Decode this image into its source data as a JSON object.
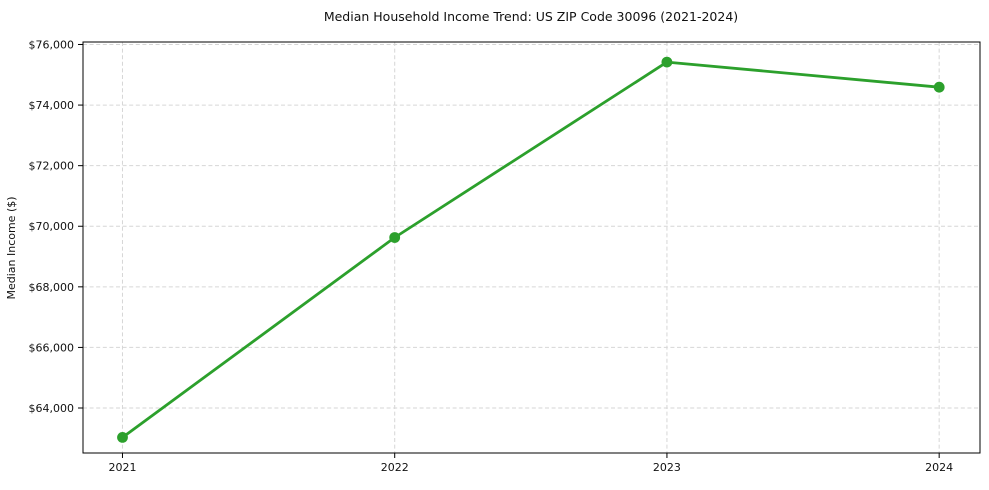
{
  "chart_data": {
    "type": "line",
    "title": "Median Household Income Trend: US ZIP Code 30096 (2021-2024)",
    "xlabel": "",
    "ylabel": "Median Income ($)",
    "x": [
      2021,
      2022,
      2023,
      2024
    ],
    "xtick_labels": [
      "2021",
      "2022",
      "2023",
      "2024"
    ],
    "series": [
      {
        "values": [
          63030,
          69630,
          75420,
          74590
        ],
        "color": "#2ca02c",
        "marker": "circle",
        "line_width": 2.8,
        "marker_radius": 5.4
      }
    ],
    "yticks": [
      64000,
      66000,
      68000,
      70000,
      72000,
      74000,
      76000
    ],
    "ytick_labels": [
      "$64,000",
      "$66,000",
      "$68,000",
      "$70,000",
      "$72,000",
      "$74,000",
      "$76,000"
    ],
    "ylim": [
      62515,
      76082
    ],
    "xlim": [
      2020.855,
      2024.15
    ],
    "grid": "dashed",
    "grid_color": "#d6d6d6",
    "background": "#ffffff",
    "legend": "none",
    "tick_color": "#111111"
  }
}
